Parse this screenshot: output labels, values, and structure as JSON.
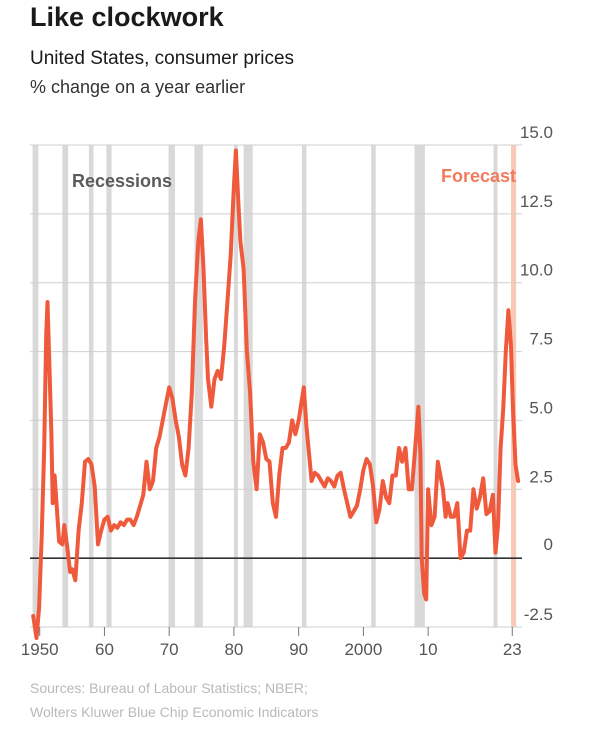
{
  "header": {
    "title": "Like clockwork",
    "subtitle": "United States, consumer prices",
    "unit": "% change on a year earlier"
  },
  "footer": {
    "source_line1": "Sources: Bureau of Labour Statistics; NBER;",
    "source_line2": "Wolters Kluwer Blue Chip Economic Indicators"
  },
  "colors": {
    "line": "#ef5a3c",
    "recession": "#d9d9d9",
    "forecast_band": "#f9c9b8",
    "forecast_label": "#f27b5e",
    "recession_label": "#5b5b5b",
    "grid": "#cfcfcf",
    "zero_line": "#333333",
    "tick_label": "#555555"
  },
  "chart_data": {
    "type": "line",
    "title": "Like clockwork",
    "ylim": [
      -2.5,
      15.0
    ],
    "xlim": [
      1948.5,
      2024.5
    ],
    "y_ticks": [
      {
        "value": 15.0,
        "label": "15.0"
      },
      {
        "value": 12.5,
        "label": "12.5"
      },
      {
        "value": 10.0,
        "label": "10.0"
      },
      {
        "value": 7.5,
        "label": "7.5"
      },
      {
        "value": 5.0,
        "label": "5.0"
      },
      {
        "value": 2.5,
        "label": "2.5"
      },
      {
        "value": 0,
        "label": "0"
      },
      {
        "value": -2.5,
        "label": "-2.5"
      }
    ],
    "x_ticks": [
      {
        "value": 1950,
        "label": "1950"
      },
      {
        "value": 1960,
        "label": "60"
      },
      {
        "value": 1970,
        "label": "70"
      },
      {
        "value": 1980,
        "label": "80"
      },
      {
        "value": 1990,
        "label": "90"
      },
      {
        "value": 2000,
        "label": "2000"
      },
      {
        "value": 2010,
        "label": "10"
      },
      {
        "value": 2023,
        "label": "23"
      }
    ],
    "recession_label": "Recessions",
    "forecast_label": "Forecast",
    "recessions": [
      [
        1948.9,
        1949.8
      ],
      [
        1953.5,
        1954.4
      ],
      [
        1957.6,
        1958.3
      ],
      [
        1960.3,
        1961.1
      ],
      [
        1969.9,
        1970.9
      ],
      [
        1973.9,
        1975.2
      ],
      [
        1980.0,
        1980.6
      ],
      [
        1981.5,
        1982.9
      ],
      [
        1990.5,
        1991.2
      ],
      [
        2001.2,
        2001.9
      ],
      [
        2007.9,
        2009.5
      ],
      [
        2020.1,
        2020.4
      ]
    ],
    "forecast": [
      2022.8,
      2023.6
    ],
    "series": [
      {
        "values": [
          [
            1949.0,
            -2.1
          ],
          [
            1949.5,
            -2.9
          ],
          [
            1949.9,
            -1.8
          ],
          [
            1950.3,
            0.8
          ],
          [
            1950.7,
            4.0
          ],
          [
            1951.0,
            8.1
          ],
          [
            1951.2,
            9.3
          ],
          [
            1951.5,
            7.0
          ],
          [
            1951.8,
            4.5
          ],
          [
            1952.0,
            2.0
          ],
          [
            1952.3,
            3.0
          ],
          [
            1952.6,
            2.0
          ],
          [
            1953.0,
            0.6
          ],
          [
            1953.5,
            0.5
          ],
          [
            1953.8,
            1.2
          ],
          [
            1954.2,
            0.5
          ],
          [
            1954.7,
            -0.5
          ],
          [
            1955.0,
            -0.4
          ],
          [
            1955.5,
            -0.8
          ],
          [
            1956.0,
            1.0
          ],
          [
            1956.5,
            2.0
          ],
          [
            1957.0,
            3.5
          ],
          [
            1957.5,
            3.6
          ],
          [
            1958.0,
            3.4
          ],
          [
            1958.5,
            2.6
          ],
          [
            1959.0,
            0.5
          ],
          [
            1959.5,
            1.0
          ],
          [
            1960.0,
            1.4
          ],
          [
            1960.5,
            1.5
          ],
          [
            1961.0,
            1.0
          ],
          [
            1961.5,
            1.2
          ],
          [
            1962.0,
            1.1
          ],
          [
            1962.5,
            1.3
          ],
          [
            1963.0,
            1.2
          ],
          [
            1963.5,
            1.4
          ],
          [
            1964.0,
            1.4
          ],
          [
            1964.5,
            1.2
          ],
          [
            1965.0,
            1.5
          ],
          [
            1965.5,
            1.9
          ],
          [
            1966.0,
            2.3
          ],
          [
            1966.5,
            3.5
          ],
          [
            1967.0,
            2.5
          ],
          [
            1967.5,
            2.8
          ],
          [
            1968.0,
            4.0
          ],
          [
            1968.5,
            4.4
          ],
          [
            1969.0,
            5.0
          ],
          [
            1969.5,
            5.6
          ],
          [
            1970.0,
            6.2
          ],
          [
            1970.5,
            5.8
          ],
          [
            1971.0,
            5.0
          ],
          [
            1971.5,
            4.4
          ],
          [
            1972.0,
            3.4
          ],
          [
            1972.5,
            3.0
          ],
          [
            1973.0,
            4.0
          ],
          [
            1973.5,
            6.0
          ],
          [
            1974.0,
            9.4
          ],
          [
            1974.5,
            11.5
          ],
          [
            1974.9,
            12.3
          ],
          [
            1975.3,
            10.5
          ],
          [
            1975.7,
            8.0
          ],
          [
            1976.0,
            6.5
          ],
          [
            1976.5,
            5.5
          ],
          [
            1977.0,
            6.5
          ],
          [
            1977.5,
            6.8
          ],
          [
            1978.0,
            6.5
          ],
          [
            1978.5,
            7.7
          ],
          [
            1979.0,
            9.3
          ],
          [
            1979.5,
            11.0
          ],
          [
            1980.0,
            13.5
          ],
          [
            1980.3,
            14.8
          ],
          [
            1980.7,
            12.8
          ],
          [
            1981.0,
            11.5
          ],
          [
            1981.5,
            10.5
          ],
          [
            1982.0,
            7.5
          ],
          [
            1982.5,
            6.0
          ],
          [
            1983.0,
            3.5
          ],
          [
            1983.5,
            2.5
          ],
          [
            1984.0,
            4.5
          ],
          [
            1984.5,
            4.2
          ],
          [
            1985.0,
            3.6
          ],
          [
            1985.5,
            3.5
          ],
          [
            1986.0,
            2.0
          ],
          [
            1986.5,
            1.5
          ],
          [
            1987.0,
            3.0
          ],
          [
            1987.5,
            4.0
          ],
          [
            1988.0,
            4.0
          ],
          [
            1988.5,
            4.2
          ],
          [
            1989.0,
            5.0
          ],
          [
            1989.5,
            4.5
          ],
          [
            1990.0,
            5.0
          ],
          [
            1990.4,
            5.6
          ],
          [
            1990.8,
            6.2
          ],
          [
            1991.2,
            4.8
          ],
          [
            1991.6,
            3.8
          ],
          [
            1992.0,
            2.8
          ],
          [
            1992.5,
            3.1
          ],
          [
            1993.0,
            3.0
          ],
          [
            1993.5,
            2.8
          ],
          [
            1994.0,
            2.6
          ],
          [
            1994.5,
            2.9
          ],
          [
            1995.0,
            2.8
          ],
          [
            1995.5,
            2.6
          ],
          [
            1996.0,
            3.0
          ],
          [
            1996.5,
            3.1
          ],
          [
            1997.0,
            2.5
          ],
          [
            1997.5,
            2.0
          ],
          [
            1998.0,
            1.5
          ],
          [
            1998.5,
            1.7
          ],
          [
            1999.0,
            1.9
          ],
          [
            1999.5,
            2.5
          ],
          [
            2000.0,
            3.2
          ],
          [
            2000.5,
            3.6
          ],
          [
            2001.0,
            3.4
          ],
          [
            2001.5,
            2.6
          ],
          [
            2002.0,
            1.3
          ],
          [
            2002.5,
            1.8
          ],
          [
            2003.0,
            2.8
          ],
          [
            2003.5,
            2.2
          ],
          [
            2004.0,
            2.0
          ],
          [
            2004.5,
            3.0
          ],
          [
            2005.0,
            3.0
          ],
          [
            2005.5,
            4.0
          ],
          [
            2006.0,
            3.5
          ],
          [
            2006.5,
            4.0
          ],
          [
            2007.0,
            2.5
          ],
          [
            2007.5,
            2.5
          ],
          [
            2008.0,
            4.0
          ],
          [
            2008.5,
            5.5
          ],
          [
            2008.8,
            3.8
          ],
          [
            2009.0,
            0.0
          ],
          [
            2009.4,
            -1.3
          ],
          [
            2009.7,
            -1.5
          ],
          [
            2010.0,
            2.5
          ],
          [
            2010.5,
            1.2
          ],
          [
            2011.0,
            1.5
          ],
          [
            2011.5,
            3.5
          ],
          [
            2011.9,
            3.0
          ],
          [
            2012.3,
            2.5
          ],
          [
            2012.7,
            1.5
          ],
          [
            2013.0,
            2.0
          ],
          [
            2013.5,
            1.5
          ],
          [
            2014.0,
            1.5
          ],
          [
            2014.5,
            2.0
          ],
          [
            2015.0,
            0.0
          ],
          [
            2015.5,
            0.2
          ],
          [
            2016.0,
            1.0
          ],
          [
            2016.5,
            1.0
          ],
          [
            2017.0,
            2.5
          ],
          [
            2017.5,
            1.8
          ],
          [
            2018.0,
            2.2
          ],
          [
            2018.5,
            2.9
          ],
          [
            2019.0,
            1.6
          ],
          [
            2019.5,
            1.7
          ],
          [
            2020.0,
            2.3
          ],
          [
            2020.4,
            0.2
          ],
          [
            2020.8,
            1.2
          ],
          [
            2021.2,
            4.0
          ],
          [
            2021.6,
            5.4
          ],
          [
            2022.0,
            7.5
          ],
          [
            2022.4,
            9.0
          ],
          [
            2022.8,
            7.7
          ],
          [
            2023.1,
            5.5
          ],
          [
            2023.5,
            3.4
          ],
          [
            2023.9,
            2.8
          ]
        ]
      }
    ]
  }
}
